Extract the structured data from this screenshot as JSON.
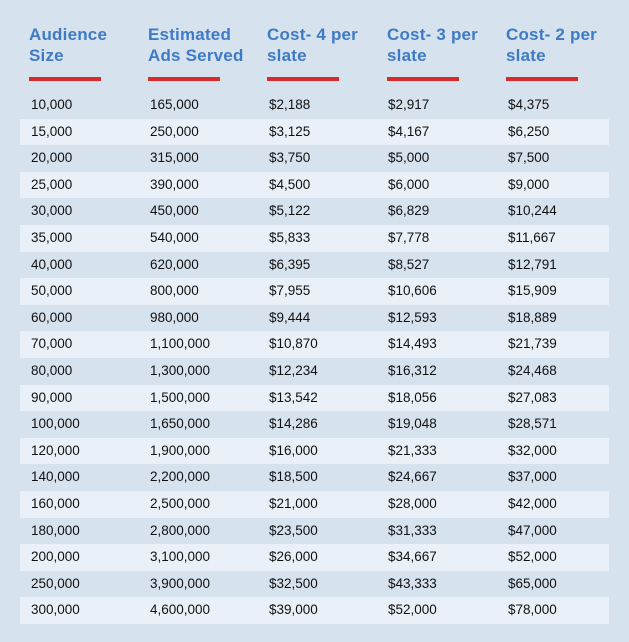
{
  "headers": [
    "Audience\nSize",
    "Estimated\nAds Served",
    "Cost- 4 per\nslate",
    "Cost- 3 per\nslate",
    "Cost- 2 per\nslate"
  ],
  "colors": {
    "background": "#d6e2ee",
    "row_alt": "#e9f0f7",
    "header_text": "#3f7bc4",
    "header_underline": "#d42b2b",
    "cell_text": "#111111"
  },
  "rows": [
    [
      "10,000",
      "165,000",
      "$2,188",
      "$2,917",
      "$4,375"
    ],
    [
      "15,000",
      "250,000",
      "$3,125",
      "$4,167",
      "$6,250"
    ],
    [
      "20,000",
      "315,000",
      "$3,750",
      "$5,000",
      "$7,500"
    ],
    [
      "25,000",
      "390,000",
      "$4,500",
      "$6,000",
      "$9,000"
    ],
    [
      "30,000",
      "450,000",
      "$5,122",
      "$6,829",
      "$10,244"
    ],
    [
      "35,000",
      "540,000",
      "$5,833",
      "$7,778",
      "$11,667"
    ],
    [
      "40,000",
      "620,000",
      "$6,395",
      "$8,527",
      "$12,791"
    ],
    [
      "50,000",
      "800,000",
      "$7,955",
      "$10,606",
      "$15,909"
    ],
    [
      "60,000",
      "980,000",
      "$9,444",
      "$12,593",
      "$18,889"
    ],
    [
      "70,000",
      "1,100,000",
      "$10,870",
      "$14,493",
      "$21,739"
    ],
    [
      "80,000",
      "1,300,000",
      "$12,234",
      "$16,312",
      "$24,468"
    ],
    [
      "90,000",
      "1,500,000",
      "$13,542",
      "$18,056",
      "$27,083"
    ],
    [
      "100,000",
      "1,650,000",
      "$14,286",
      "$19,048",
      "$28,571"
    ],
    [
      "120,000",
      "1,900,000",
      "$16,000",
      "$21,333",
      "$32,000"
    ],
    [
      "140,000",
      "2,200,000",
      "$18,500",
      "$24,667",
      "$37,000"
    ],
    [
      "160,000",
      "2,500,000",
      "$21,000",
      "$28,000",
      "$42,000"
    ],
    [
      "180,000",
      "2,800,000",
      "$23,500",
      "$31,333",
      "$47,000"
    ],
    [
      "200,000",
      "3,100,000",
      "$26,000",
      "$34,667",
      "$52,000"
    ],
    [
      "250,000",
      "3,900,000",
      "$32,500",
      "$43,333",
      "$65,000"
    ],
    [
      "300,000",
      "4,600,000",
      "$39,000",
      "$52,000",
      "$78,000"
    ]
  ]
}
